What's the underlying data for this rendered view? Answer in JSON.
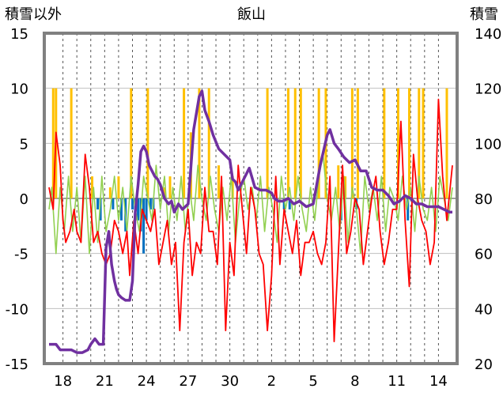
{
  "chart_data": {
    "type": "line",
    "title": "飯山",
    "ylabel_left": "積雪以外",
    "ylabel_right": "積雪",
    "ylim_left": [
      -15,
      15
    ],
    "ylim_right": [
      20,
      140
    ],
    "yticks_left": [
      "15",
      "10",
      "5",
      "0",
      "-5",
      "-10",
      "-15"
    ],
    "yticks_right": [
      "140",
      "120",
      "100",
      "80",
      "60",
      "40",
      "20"
    ],
    "xticks": [
      "18",
      "21",
      "24",
      "27",
      "30",
      "2",
      "5",
      "8",
      "11",
      "14"
    ],
    "days": 29,
    "grid": true,
    "colors": {
      "snow_depth": "#7030a0",
      "temperature": "#ff0000",
      "temp_diff": "#92d050",
      "precip": "#ffc000",
      "change": "#0070c0",
      "frame": "#808080"
    },
    "series": [
      {
        "key": "snow_depth",
        "axis": "right",
        "x": [
          0,
          0.5,
          0.8,
          1.2,
          1.6,
          2.0,
          2.4,
          2.8,
          3.0,
          3.3,
          3.6,
          3.9,
          4.1,
          4.3,
          4.5,
          4.7,
          4.85,
          5.0,
          5.2,
          5.5,
          5.8,
          6.0,
          6.2,
          6.4,
          6.6,
          6.8,
          7.0,
          7.2,
          7.6,
          7.8,
          8.0,
          8.3,
          8.6,
          8.8,
          9.0,
          9.3,
          9.6,
          10.0,
          10.4,
          10.8,
          11.0,
          11.2,
          11.5,
          11.8,
          12.2,
          12.6,
          13.0,
          13.2,
          13.4,
          13.6,
          14.0,
          14.4,
          14.8,
          15.2,
          15.6,
          16.0,
          16.2,
          16.5,
          16.8,
          17.2,
          17.6,
          18.0,
          18.5,
          19.0,
          19.5,
          20.0,
          20.2,
          20.5,
          20.8,
          21.2,
          21.6,
          22.0,
          22.4,
          22.8,
          23.2,
          23.6,
          24.0,
          24.4,
          24.8,
          25.2,
          25.6,
          26.0,
          26.4,
          26.8,
          27.2,
          27.6,
          28.0,
          28.4,
          28.8,
          29.0
        ],
        "y": [
          27,
          27,
          25,
          25,
          25,
          24,
          24,
          25,
          27,
          29,
          27,
          27,
          62,
          68,
          56,
          50,
          47,
          45,
          44,
          43,
          43,
          50,
          75,
          85,
          97,
          99,
          97,
          92,
          88,
          87,
          85,
          80,
          78,
          79,
          75,
          78,
          76,
          78,
          105,
          117,
          119,
          112,
          108,
          103,
          98,
          96,
          94,
          87,
          86,
          83,
          87,
          91,
          84,
          83,
          83,
          82,
          80,
          79,
          79,
          80,
          78,
          79,
          77,
          78,
          92,
          103,
          105,
          100,
          98,
          95,
          93,
          94,
          90,
          90,
          84,
          83,
          83,
          81,
          78,
          79,
          81,
          80,
          78,
          78,
          77,
          77,
          77,
          76,
          75,
          75
        ]
      },
      {
        "key": "temperature",
        "axis": "left",
        "x": [
          0,
          0.3,
          0.5,
          0.8,
          1.0,
          1.2,
          1.5,
          1.8,
          2.0,
          2.3,
          2.6,
          2.9,
          3.2,
          3.5,
          3.8,
          4.1,
          4.4,
          4.7,
          5.0,
          5.3,
          5.6,
          5.8,
          6.1,
          6.4,
          6.7,
          7.0,
          7.3,
          7.6,
          7.9,
          8.2,
          8.5,
          8.8,
          9.1,
          9.4,
          9.7,
          10.0,
          10.3,
          10.6,
          10.9,
          11.2,
          11.5,
          11.8,
          12.1,
          12.4,
          12.7,
          13.0,
          13.3,
          13.6,
          13.9,
          14.2,
          14.5,
          14.8,
          15.1,
          15.4,
          15.7,
          16.0,
          16.3,
          16.6,
          16.9,
          17.2,
          17.5,
          17.8,
          18.1,
          18.4,
          18.7,
          19.0,
          19.3,
          19.6,
          19.9,
          20.2,
          20.5,
          20.8,
          21.1,
          21.4,
          21.7,
          22.0,
          22.3,
          22.6,
          22.9,
          23.2,
          23.5,
          23.8,
          24.1,
          24.4,
          24.7,
          25.0,
          25.3,
          25.6,
          25.9,
          26.2,
          26.5,
          26.8,
          27.1,
          27.4,
          27.7,
          28.0,
          28.3,
          28.6,
          29.0
        ],
        "y": [
          1,
          -1,
          6,
          3,
          -2,
          -4,
          -3,
          -1,
          -3,
          -4,
          4,
          1,
          -4,
          -3,
          -5,
          -6,
          -5,
          -2,
          -3,
          -5,
          -3,
          -7,
          -2,
          -5,
          -1,
          -2,
          -3,
          -1,
          -6,
          -4,
          -2,
          -6,
          -4,
          -12,
          -4,
          -1,
          -7,
          -4,
          -5,
          1,
          -3,
          -3,
          -6,
          2,
          -12,
          -4,
          -7,
          3,
          -1,
          -5,
          1,
          -1,
          -5,
          -6,
          -12,
          -7,
          2,
          -6,
          -1,
          -3,
          -5,
          -2,
          -7,
          -4,
          -4,
          -3,
          -5,
          -6,
          -4,
          2,
          -13,
          -5,
          3,
          -5,
          -3,
          0,
          -1,
          -6,
          -3,
          0,
          2,
          -3,
          -6,
          -4,
          -1,
          -1,
          7,
          -2,
          -8,
          4,
          0,
          -2,
          -3,
          -6,
          -4,
          9,
          2,
          -2,
          3
        ]
      },
      {
        "key": "temp_diff",
        "axis": "left",
        "x": [
          0,
          0.2,
          0.5,
          0.8,
          1.1,
          1.4,
          1.7,
          2.0,
          2.3,
          2.6,
          2.9,
          3.2,
          3.5,
          3.8,
          4.1,
          4.4,
          4.7,
          5.0,
          5.3,
          5.6,
          5.9,
          6.2,
          6.5,
          6.8,
          7.1,
          7.4,
          7.7,
          8.0,
          8.3,
          8.6,
          8.9,
          9.2,
          9.5,
          9.8,
          10.1,
          10.4,
          10.7,
          11.0,
          11.3,
          11.6,
          11.9,
          12.2,
          12.5,
          12.8,
          13.1,
          13.4,
          13.7,
          14.0,
          14.3,
          14.6,
          14.9,
          15.2,
          15.5,
          15.8,
          16.1,
          16.4,
          16.7,
          17.0,
          17.3,
          17.6,
          17.9,
          18.2,
          18.5,
          18.8,
          19.1,
          19.4,
          19.7,
          20.0,
          20.3,
          20.6,
          20.9,
          21.2,
          21.5,
          21.8,
          22.1,
          22.4,
          22.7,
          23.0,
          23.3,
          23.6,
          23.9,
          24.2,
          24.5,
          24.8,
          25.1,
          25.4,
          25.7,
          26.0,
          26.3,
          26.6,
          26.9,
          27.2,
          27.5,
          27.8,
          28.1,
          28.4,
          28.7,
          29.0
        ],
        "y": [
          -1,
          1,
          -5,
          1,
          -3,
          2,
          -3,
          1,
          -4,
          2,
          -5,
          1,
          -4,
          2,
          -3,
          -1,
          2,
          -2,
          1,
          -3,
          2,
          -1,
          -3,
          2,
          0,
          -2,
          3,
          -1,
          2,
          -3,
          1,
          -2,
          2,
          -3,
          1,
          -2,
          3,
          0,
          -2,
          2,
          -1,
          -3,
          1,
          -2,
          2,
          -4,
          0,
          2,
          -1,
          1,
          -2,
          2,
          -3,
          1,
          -1,
          -4,
          2,
          -1,
          1,
          -2,
          2,
          -1,
          -3,
          1,
          -2,
          2,
          4,
          0,
          -2,
          1,
          -3,
          2,
          -4,
          1,
          -1,
          -5,
          2,
          -1,
          1,
          -2,
          2,
          -3,
          1,
          0,
          -2,
          2,
          -1,
          1,
          -3,
          2,
          -1,
          -2,
          1,
          -3,
          2,
          0,
          -2,
          1
        ]
      },
      {
        "key": "precip",
        "type": "bar",
        "axis": "left",
        "x": [
          0.3,
          0.5,
          1.6,
          3.1,
          4.4,
          5.0,
          5.9,
          7.1,
          8.3,
          8.7,
          9.7,
          10.2,
          10.8,
          11.5,
          12.2,
          13.2,
          15.7,
          17.2,
          17.7,
          18.1,
          19.4,
          19.9,
          20.8,
          21.3,
          21.8,
          22.2,
          24.1,
          25.1,
          25.9,
          26.6,
          26.9,
          28.6
        ],
        "y": [
          10,
          10,
          10,
          2,
          1,
          2,
          10,
          10,
          1,
          2,
          10,
          6,
          10,
          10,
          3,
          2,
          10,
          10,
          10,
          10,
          10,
          10,
          3,
          2,
          10,
          10,
          10,
          10,
          10,
          10,
          10,
          10
        ]
      },
      {
        "key": "change",
        "type": "bar",
        "axis": "left",
        "x": [
          3.5,
          3.7,
          4.6,
          5.2,
          5.5,
          6.0,
          6.2,
          6.4,
          6.6,
          6.8,
          7.0,
          7.3,
          7.5,
          16.9,
          17.3,
          21.0,
          22.1,
          25.8
        ],
        "y": [
          -1,
          -2,
          -1,
          -2,
          -3,
          -1,
          -2,
          -2,
          -3,
          -5,
          -2,
          -1,
          -1,
          -1,
          -1,
          -2,
          -1,
          -2
        ]
      }
    ]
  }
}
